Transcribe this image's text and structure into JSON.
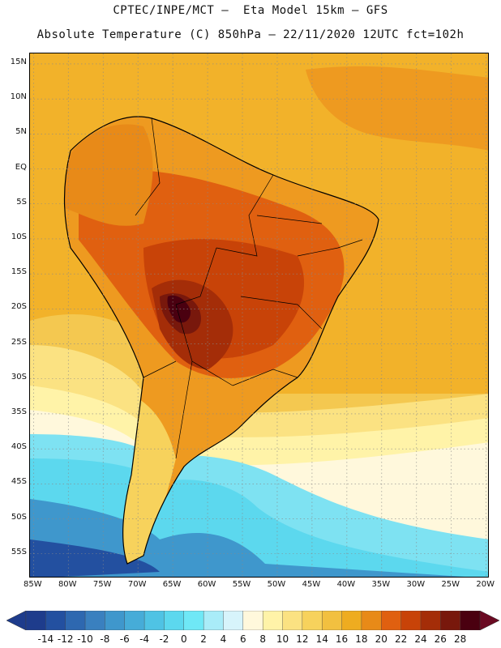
{
  "header": {
    "line1": "CPTEC/INPE/MCT –  Eta Model 15km – GFS",
    "line2": "Absolute Temperature (C) 850hPa – 22/11/2020 12UTC fct=102h"
  },
  "map": {
    "lat_labels": [
      "15N",
      "10N",
      "5N",
      "EQ",
      "5S",
      "10S",
      "15S",
      "20S",
      "25S",
      "30S",
      "35S",
      "40S",
      "45S",
      "50S",
      "55S"
    ],
    "lon_labels": [
      "85W",
      "80W",
      "75W",
      "70W",
      "65W",
      "60W",
      "55W",
      "50W",
      "45W",
      "40W",
      "35W",
      "30W",
      "25W",
      "20W"
    ],
    "lat_values": [
      15,
      10,
      5,
      0,
      -5,
      -10,
      -15,
      -20,
      -25,
      -30,
      -35,
      -40,
      -45,
      -50,
      -55
    ],
    "lon_values": [
      -85,
      -80,
      -75,
      -70,
      -65,
      -60,
      -55,
      -50,
      -45,
      -40,
      -35,
      -30,
      -25,
      -20
    ],
    "extent": {
      "lon_min": -85.5,
      "lon_max": -19.5,
      "lat_min": -58.5,
      "lat_max": 16.5
    }
  },
  "legend": {
    "labels": [
      "-14",
      "-12",
      "-10",
      "-8",
      "-6",
      "-4",
      "-2",
      "0",
      "2",
      "4",
      "6",
      "8",
      "10",
      "12",
      "14",
      "16",
      "18",
      "20",
      "22",
      "24",
      "26",
      "28"
    ],
    "colors": [
      "#1e3c8c",
      "#2350a0",
      "#2e68b0",
      "#3a80bf",
      "#3f97cc",
      "#46acd8",
      "#4fc3e4",
      "#5cd8ee",
      "#6fe8f6",
      "#a9ecf8",
      "#d7f4fb",
      "#fff8dc",
      "#fff3a8",
      "#fbe282",
      "#f7d25c",
      "#f2c040",
      "#eeac20",
      "#e88a18",
      "#e06010",
      "#c84308",
      "#a42d08",
      "#78180c",
      "#4a0010"
    ],
    "left_arrow_color": "#1e3c8c",
    "right_arrow_color": "#6a0a22"
  }
}
